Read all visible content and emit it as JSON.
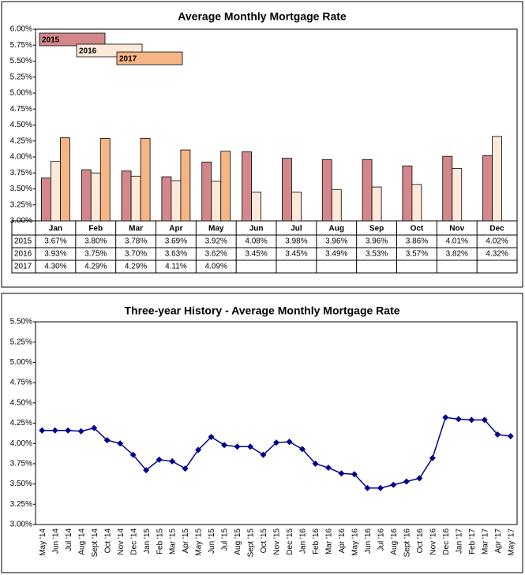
{
  "chart_data": [
    {
      "type": "bar",
      "title": "Average Monthly Mortgage Rate",
      "categories": [
        "Jan",
        "Feb",
        "Mar",
        "Apr",
        "May",
        "Jun",
        "Jul",
        "Aug",
        "Sep",
        "Oct",
        "Nov",
        "Dec"
      ],
      "series": [
        {
          "name": "2015",
          "color": "#d4878a",
          "values": [
            3.67,
            3.8,
            3.78,
            3.69,
            3.92,
            4.08,
            3.98,
            3.96,
            3.96,
            3.86,
            4.01,
            4.02
          ],
          "value_labels": [
            "3.67%",
            "3.80%",
            "3.78%",
            "3.69%",
            "3.92%",
            "4.08%",
            "3.98%",
            "3.96%",
            "3.96%",
            "3.86%",
            "4.01%",
            "4.02%"
          ]
        },
        {
          "name": "2016",
          "color": "#fde9d9",
          "values": [
            3.93,
            3.75,
            3.7,
            3.63,
            3.62,
            3.45,
            3.45,
            3.49,
            3.53,
            3.57,
            3.82,
            4.32
          ],
          "value_labels": [
            "3.93%",
            "3.75%",
            "3.70%",
            "3.63%",
            "3.62%",
            "3.45%",
            "3.45%",
            "3.49%",
            "3.53%",
            "3.57%",
            "3.82%",
            "4.32%"
          ]
        },
        {
          "name": "2017",
          "color": "#f6b585",
          "values": [
            4.3,
            4.29,
            4.29,
            4.11,
            4.09,
            null,
            null,
            null,
            null,
            null,
            null,
            null
          ],
          "value_labels": [
            "4.30%",
            "4.29%",
            "4.29%",
            "4.11%",
            "4.09%",
            null,
            null,
            null,
            null,
            null,
            null,
            null
          ]
        }
      ],
      "ylim": [
        3,
        6
      ],
      "yticks": [
        {
          "value": 3,
          "label": "3.00%"
        },
        {
          "value": 3.25,
          "label": "3.25%"
        },
        {
          "value": 3.5,
          "label": "3.50%"
        },
        {
          "value": 3.75,
          "label": "3.75%"
        },
        {
          "value": 4,
          "label": "4.00%"
        },
        {
          "value": 4.25,
          "label": "4.25%"
        },
        {
          "value": 4.5,
          "label": "4.50%"
        },
        {
          "value": 4.75,
          "label": "4.75%"
        },
        {
          "value": 5,
          "label": "5.00%"
        },
        {
          "value": 5.25,
          "label": "5.25%"
        },
        {
          "value": 5.5,
          "label": "5.50%"
        },
        {
          "value": 5.75,
          "label": "5.75%"
        },
        {
          "value": 6,
          "label": "6.00%"
        }
      ],
      "grid": false,
      "legend": "top-left"
    },
    {
      "type": "line",
      "title": "Three-year History - Average Monthly Mortgage Rate",
      "categories": [
        "May '14",
        "Jun '14",
        "Jul '14",
        "Aug '14",
        "Sept '14",
        "Oct '14",
        "Nov '14",
        "Dec '14",
        "Jan '15",
        "Feb '15",
        "Mar '15",
        "Apr '15",
        "May '15",
        "Jun '15",
        "Jul '15",
        "Aug '15",
        "Sept '15",
        "Oct '15",
        "Nov '15",
        "Dec '15",
        "Jan '16",
        "Feb '16",
        "Mar '16",
        "Apr '16",
        "May '16",
        "Jun '16",
        "Jul '16",
        "Aug '16",
        "Sept '16",
        "Oct '16",
        "Nov '16",
        "Dec '16",
        "Jan '17",
        "Feb '17",
        "Mar '17",
        "Apr '17",
        "May '17"
      ],
      "color": "#00008b",
      "values": [
        4.16,
        4.16,
        4.16,
        4.15,
        4.19,
        4.04,
        4.0,
        3.86,
        3.67,
        3.8,
        3.78,
        3.69,
        3.92,
        4.08,
        3.98,
        3.96,
        3.96,
        3.86,
        4.01,
        4.02,
        3.93,
        3.75,
        3.7,
        3.63,
        3.62,
        3.45,
        3.45,
        3.49,
        3.53,
        3.57,
        3.82,
        4.32,
        4.3,
        4.29,
        4.29,
        4.11,
        4.09
      ],
      "ylim": [
        3,
        5.5
      ],
      "yticks": [
        {
          "value": 3,
          "label": "3.00%"
        },
        {
          "value": 3.25,
          "label": "3.25%"
        },
        {
          "value": 3.5,
          "label": "3.50%"
        },
        {
          "value": 3.75,
          "label": "3.75%"
        },
        {
          "value": 4,
          "label": "4.00%"
        },
        {
          "value": 4.25,
          "label": "4.25%"
        },
        {
          "value": 4.5,
          "label": "4.50%"
        },
        {
          "value": 4.75,
          "label": "4.75%"
        },
        {
          "value": 5,
          "label": "5.00%"
        },
        {
          "value": 5.25,
          "label": "5.25%"
        },
        {
          "value": 5.5,
          "label": "5.50%"
        }
      ],
      "grid": false
    }
  ]
}
